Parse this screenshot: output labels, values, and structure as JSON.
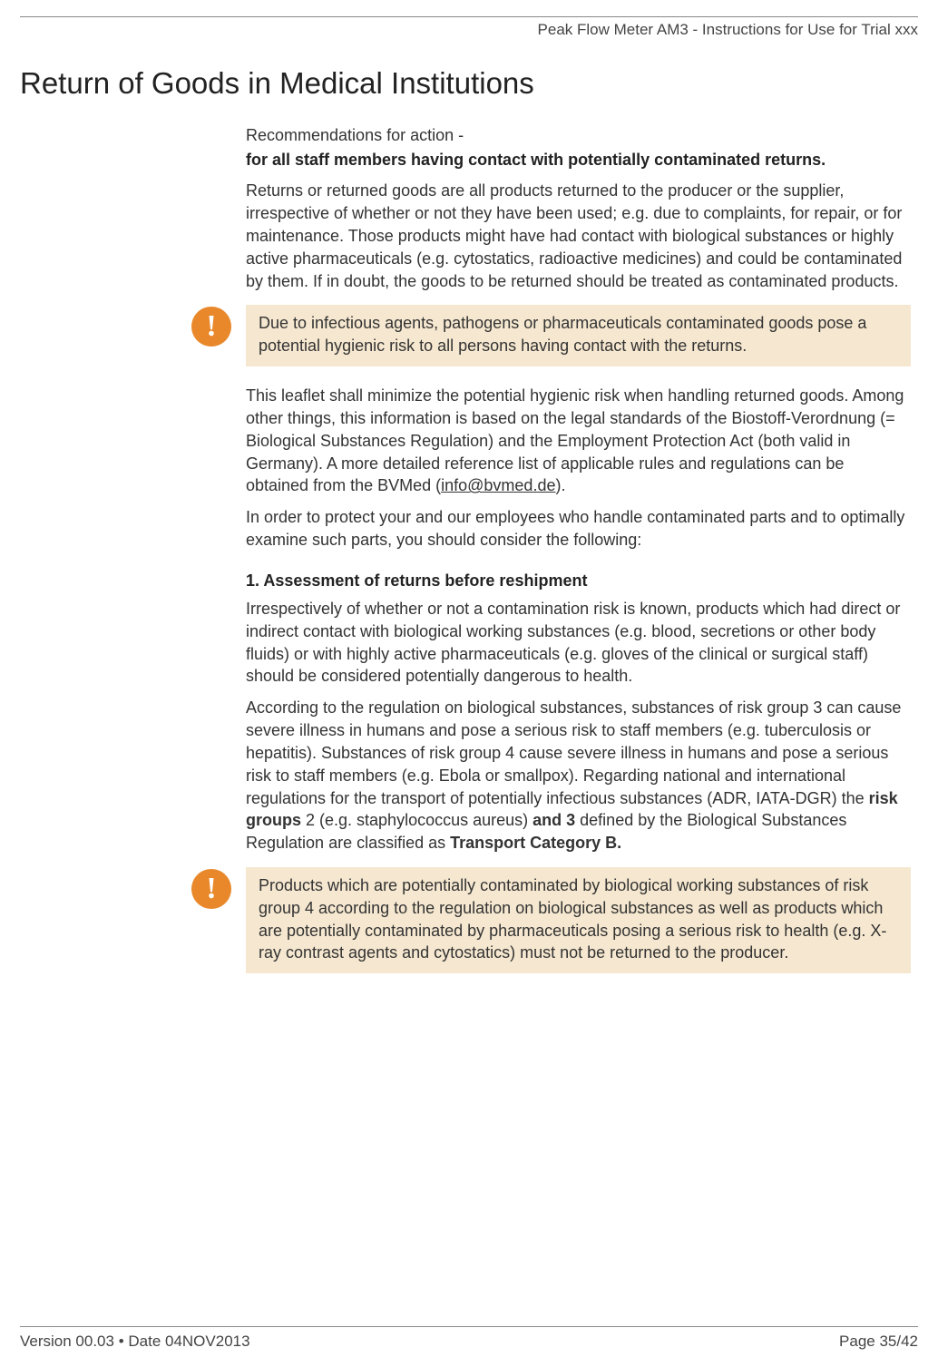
{
  "header": {
    "right": "Peak Flow Meter AM3 - Instructions for Use for Trial xxx"
  },
  "title": "Return of Goods in Medical Institutions",
  "intro_line": "Recommendations for action  -",
  "intro_bold": "for all staff members having contact with potentially contaminated returns.",
  "p1": "Returns or returned goods are all products returned to the producer or the supplier, irrespective of whether or not they have been used; e.g. due to complaints, for repair, or for maintenance. Those products might have had contact with biological substances or highly active pharmaceuticals (e.g. cytostatics, radioactive medicines) and could be contaminated by them. If in doubt, the goods to be returned should be treated as contaminated products.",
  "callout1": "Due to infectious agents, pathogens or pharmaceuticals contaminated goods pose a potential hygienic risk to all persons having contact with the returns.",
  "p2a": "This leaflet shall minimize the potential hygienic risk when handling returned goods. Among other things, this information is based on the legal standards of the Biostoff-Verordnung (= Biological Substances Regulation) and the Employment Protection Act (both valid in Germany). A more detailed reference list of applicable rules and regulations can be obtained from the BVMed (",
  "p2link": "info@bvmed.de",
  "p2b": ").",
  "p3": "In order to protect your and our employees who handle contaminated parts and to optimally examine such parts, you should consider the following:",
  "section1_heading": "1. Assessment of returns before reshipment",
  "s1p1": "Irrespectively of whether or not a contamination risk is known, products which had direct or indirect contact with biological working substances (e.g. blood, secretions or other body fluids) or with highly active pharmaceuticals (e.g. gloves of the clinical or surgical staff) should be considered potentially dangerous to health.",
  "s1p2a": "According to the regulation on biological substances, substances of risk group 3 can cause severe illness in humans and pose a serious risk to staff members (e.g. tuberculosis or hepatitis). Substances of risk group 4 cause severe illness in humans and pose a serious risk to staff members (e.g. Ebola or smallpox). Regarding national and international regulations for the transport of potentially infectious substances (ADR, IATA-DGR) the ",
  "s1p2b1": "risk groups",
  "s1p2c": " 2 (e.g. staphylococcus aureus) ",
  "s1p2b2": "and 3",
  "s1p2d": " defined by the Biological Substances Regulation are classified as ",
  "s1p2b3": "Transport Category B.",
  "callout2": "Products which are potentially contaminated by biological working substances of risk group 4 according to the regulation on biological substances as well as products which are potentially contaminated by pharmaceuticals posing a serious risk to health (e.g. X-ray contrast agents and cytostatics) must not be returned to the producer.",
  "footer": {
    "left": "Version 00.03 • Date 04NOV2013",
    "right": "Page 35/42"
  },
  "icon_glyph": "!"
}
